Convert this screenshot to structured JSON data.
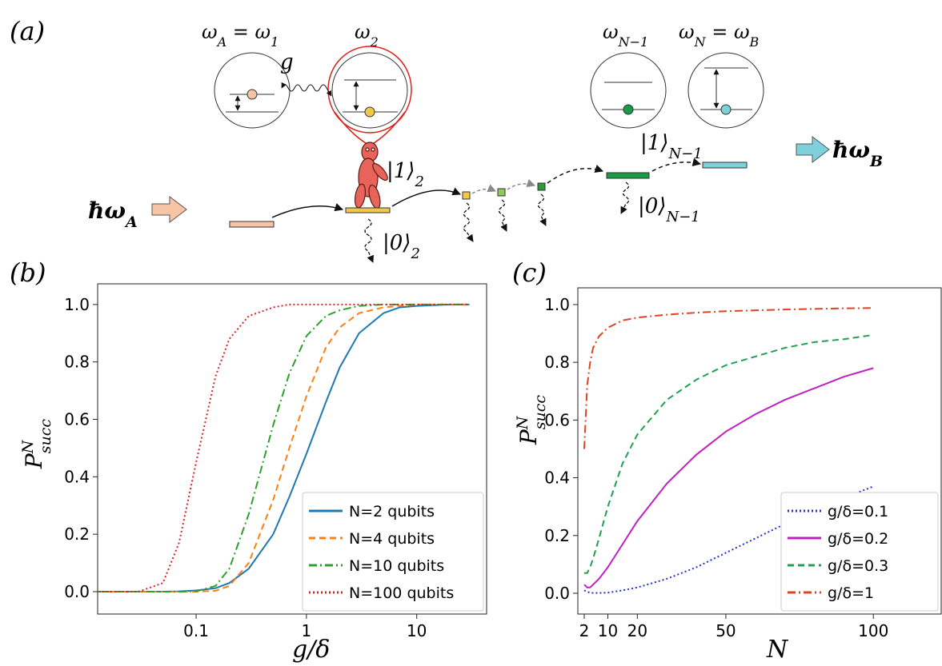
{
  "diagram": {
    "panel_label": "(a)",
    "labels": {
      "omega_a": [
        "ω",
        "A",
        " = ω",
        "1"
      ],
      "omega_2": [
        "ω",
        "2"
      ],
      "omega_n1": [
        "ω",
        "N−1"
      ],
      "omega_n": [
        "ω",
        "N",
        " = ω",
        "B"
      ],
      "coupling": "g",
      "ket1_2": [
        "|1⟩",
        "2"
      ],
      "ket0_2": [
        "|0⟩",
        "2"
      ],
      "ket1_n1": [
        "|1⟩",
        "N−1"
      ],
      "ket0_n1": [
        "|0⟩",
        "N−1"
      ],
      "energy_a": [
        "ħω",
        "A"
      ],
      "energy_b": [
        "ħω",
        "B"
      ]
    }
  },
  "chart_data": [
    {
      "type": "line",
      "panel_label": "(b)",
      "x_label": "g/δ",
      "y_label": [
        "P",
        "N",
        "succ"
      ],
      "xscale": "log",
      "xlim": [
        0.0128,
        43
      ],
      "xticks": [
        0.1,
        1,
        10
      ],
      "ylim": [
        -0.078,
        1.072
      ],
      "yticks": [
        {
          "value": 0,
          "label": "0.0"
        },
        0.2,
        0.4,
        0.6,
        0.8,
        {
          "value": 1,
          "label": "1.0"
        }
      ],
      "legend": "lower right",
      "x": [
        0.013,
        0.02,
        0.03,
        0.05,
        0.07,
        0.1,
        0.15,
        0.2,
        0.3,
        0.5,
        0.7,
        1,
        1.5,
        2,
        3,
        5,
        7,
        10,
        20,
        30
      ],
      "series": [
        {
          "name": "N=2 qubits",
          "color": "#1f77b4",
          "linestyle": "solid",
          "values": [
            0,
            0,
            0,
            0,
            0.001,
            0.004,
            0.012,
            0.03,
            0.08,
            0.2,
            0.33,
            0.48,
            0.66,
            0.78,
            0.9,
            0.97,
            0.99,
            0.995,
            1,
            1
          ]
        },
        {
          "name": "N=4 qubits",
          "color": "#ff7f0e",
          "linestyle": "dashed",
          "values": [
            0,
            0,
            0,
            0,
            0,
            0,
            0.003,
            0.02,
            0.1,
            0.32,
            0.5,
            0.68,
            0.85,
            0.92,
            0.97,
            0.99,
            0.995,
            1,
            1,
            1
          ]
        },
        {
          "name": "N=10 qubits",
          "color": "#2ca02c",
          "linestyle": "dashdot",
          "values": [
            0,
            0,
            0,
            0,
            0,
            0.001,
            0.02,
            0.08,
            0.27,
            0.58,
            0.76,
            0.89,
            0.96,
            0.98,
            0.995,
            1,
            1,
            1,
            1,
            1
          ]
        },
        {
          "name": "N=100 qubits",
          "color": "#d62728",
          "linestyle": "dotted",
          "values": [
            0,
            0,
            0,
            0.03,
            0.17,
            0.45,
            0.75,
            0.88,
            0.96,
            0.99,
            1,
            1,
            1,
            1,
            1,
            1,
            1,
            1,
            1,
            1
          ]
        }
      ]
    },
    {
      "type": "line",
      "panel_label": "(c)",
      "x_label": "N",
      "y_label": [
        "P",
        "N",
        "succ"
      ],
      "xscale": "linear",
      "xlim": [
        -0.17,
        123
      ],
      "xticks": [
        2,
        10,
        20,
        50,
        100
      ],
      "ylim": [
        -0.072,
        1.058
      ],
      "yticks": [
        {
          "value": 0,
          "label": "0.0"
        },
        0.2,
        0.4,
        0.6,
        0.8,
        {
          "value": 1,
          "label": "1.0"
        }
      ],
      "legend": "lower right",
      "x": [
        2,
        3,
        4,
        5,
        7,
        10,
        15,
        20,
        30,
        40,
        50,
        60,
        70,
        80,
        90,
        100
      ],
      "series": [
        {
          "name": "g/δ=0.1",
          "color": "#2233cc",
          "linestyle": "dotted",
          "values": [
            0.01,
            0.005,
            0.002,
            0.001,
            0.001,
            0.002,
            0.01,
            0.02,
            0.05,
            0.09,
            0.14,
            0.19,
            0.24,
            0.29,
            0.33,
            0.37
          ]
        },
        {
          "name": "g/δ=0.2",
          "color": "#c020c0",
          "linestyle": "solid",
          "values": [
            0.03,
            0.02,
            0.02,
            0.03,
            0.05,
            0.09,
            0.17,
            0.25,
            0.38,
            0.48,
            0.56,
            0.62,
            0.67,
            0.71,
            0.75,
            0.78
          ]
        },
        {
          "name": "g/δ=0.3",
          "color": "#20a050",
          "linestyle": "dashed",
          "values": [
            0.07,
            0.07,
            0.09,
            0.12,
            0.19,
            0.3,
            0.45,
            0.55,
            0.67,
            0.74,
            0.79,
            0.82,
            0.85,
            0.87,
            0.88,
            0.895
          ]
        },
        {
          "name": "g/δ=1",
          "color": "#dd4422",
          "linestyle": "dashdot",
          "values": [
            0.5,
            0.72,
            0.8,
            0.85,
            0.89,
            0.92,
            0.945,
            0.955,
            0.965,
            0.972,
            0.977,
            0.98,
            0.983,
            0.985,
            0.987,
            0.988
          ]
        }
      ]
    }
  ]
}
